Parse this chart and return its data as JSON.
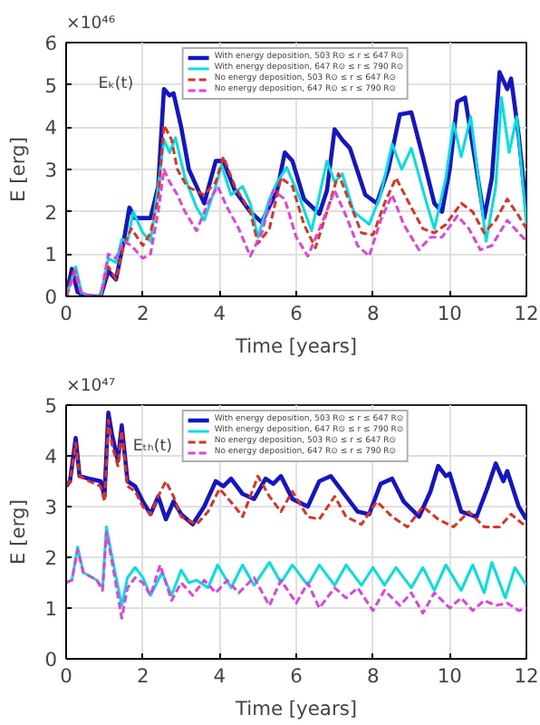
{
  "chart_data": [
    {
      "type": "line",
      "xlabel": "Time [years]",
      "ylabel": "E [erg]",
      "annotations": [
        "×10⁴⁶",
        "Eₖ(t)"
      ],
      "xlim": [
        0,
        12
      ],
      "xticks": [
        0,
        2,
        4,
        6,
        8,
        10,
        12
      ],
      "ylim": [
        0,
        6
      ],
      "yticks": [
        0,
        1,
        2,
        3,
        4,
        5,
        6
      ],
      "grid": true,
      "legend": "top",
      "series": [
        {
          "name": "With energy deposition, 503 R⊙ ≤ r ≤ 647 R⊙",
          "color": "#1414c8",
          "line_style": "solid",
          "x": [
            0,
            0.15,
            0.3,
            0.5,
            0.9,
            1.1,
            1.3,
            1.5,
            1.65,
            1.8,
            2.2,
            2.4,
            2.55,
            2.7,
            2.8,
            3.0,
            3.2,
            3.4,
            3.6,
            3.9,
            4.1,
            4.4,
            4.8,
            5.1,
            5.5,
            5.7,
            5.9,
            6.2,
            6.6,
            6.8,
            7.0,
            7.2,
            7.4,
            7.8,
            8.1,
            8.4,
            8.7,
            9.0,
            9.3,
            9.6,
            9.8,
            10.0,
            10.2,
            10.4,
            10.7,
            10.9,
            11.1,
            11.3,
            11.5,
            11.6,
            11.8,
            12
          ],
          "values": [
            0,
            0.65,
            0.1,
            0,
            0,
            0.6,
            0.4,
            1.3,
            2.1,
            1.85,
            1.85,
            2.6,
            4.9,
            4.75,
            4.8,
            4.0,
            3.0,
            2.6,
            2.2,
            3.2,
            3.2,
            2.5,
            2.0,
            1.75,
            2.5,
            3.4,
            3.2,
            2.3,
            1.95,
            2.5,
            3.95,
            3.7,
            3.5,
            2.4,
            2.2,
            3.0,
            4.3,
            4.35,
            3.3,
            2.2,
            2.0,
            3.0,
            4.6,
            4.7,
            3.0,
            1.85,
            2.8,
            5.3,
            4.9,
            5.15,
            3.8,
            2.0
          ]
        },
        {
          "name": "With energy deposition, 647 R⊙ ≤ r ≤ 790 R⊙",
          "color": "#00e0e0",
          "line_style": "solid",
          "x": [
            0,
            0.25,
            0.4,
            0.6,
            0.9,
            1.1,
            1.3,
            1.45,
            1.6,
            1.75,
            2.0,
            2.2,
            2.4,
            2.55,
            2.7,
            2.85,
            3.1,
            3.4,
            3.6,
            3.9,
            4.05,
            4.3,
            4.6,
            4.8,
            5.0,
            5.3,
            5.5,
            5.75,
            6.1,
            6.4,
            6.8,
            7.0,
            7.2,
            7.5,
            7.9,
            8.2,
            8.5,
            8.75,
            9.0,
            9.4,
            9.6,
            9.9,
            10.1,
            10.3,
            10.55,
            10.8,
            10.95,
            11.2,
            11.35,
            11.55,
            11.75,
            12
          ],
          "values": [
            0,
            0.7,
            0.1,
            0,
            0,
            0.9,
            0.8,
            1.35,
            1.3,
            2.0,
            1.5,
            1.3,
            2.6,
            3.7,
            3.4,
            3.75,
            2.8,
            2.1,
            1.8,
            2.6,
            3.1,
            2.4,
            2.6,
            2.2,
            1.4,
            2.3,
            2.7,
            3.05,
            2.3,
            1.55,
            3.2,
            2.7,
            2.9,
            2.0,
            1.7,
            2.4,
            3.6,
            3.0,
            3.5,
            2.2,
            1.6,
            2.8,
            4.1,
            3.3,
            4.25,
            2.4,
            1.3,
            2.6,
            4.7,
            3.4,
            4.25,
            1.7
          ]
        },
        {
          "name": "No energy deposition, 503 R⊙ ≤ r ≤ 647 R⊙",
          "color": "#e03020",
          "line_style": "dashed",
          "x": [
            0,
            0.2,
            0.4,
            0.9,
            1.1,
            1.3,
            1.5,
            1.7,
            2.0,
            2.2,
            2.4,
            2.55,
            2.75,
            2.9,
            3.15,
            3.6,
            3.9,
            4.1,
            4.4,
            4.8,
            5.0,
            5.3,
            5.6,
            5.9,
            6.2,
            6.5,
            6.8,
            7.1,
            7.4,
            7.7,
            8.0,
            8.3,
            8.6,
            9.0,
            9.3,
            9.6,
            9.9,
            10.3,
            10.6,
            10.9,
            11.2,
            11.5,
            11.8,
            12
          ],
          "values": [
            0,
            0.6,
            0.05,
            0,
            0.7,
            0.4,
            1.2,
            1.6,
            1.2,
            1.5,
            2.3,
            4.05,
            3.7,
            3.0,
            2.6,
            2.4,
            2.7,
            3.3,
            2.6,
            2.0,
            1.25,
            1.6,
            2.8,
            2.6,
            1.7,
            1.15,
            2.0,
            2.9,
            2.2,
            1.5,
            1.45,
            2.2,
            2.8,
            2.1,
            1.6,
            1.5,
            1.7,
            2.2,
            2.0,
            1.5,
            1.8,
            2.3,
            1.9,
            1.6
          ]
        },
        {
          "name": "No energy deposition, 647 R⊙ ≤ r ≤ 790 R⊙",
          "color": "#e040e0",
          "line_style": "dashed",
          "x": [
            0,
            0.25,
            0.4,
            0.9,
            1.1,
            1.3,
            1.5,
            1.7,
            2.0,
            2.2,
            2.4,
            2.55,
            2.7,
            2.9,
            3.1,
            3.4,
            3.7,
            3.95,
            4.2,
            4.5,
            4.8,
            5.1,
            5.4,
            5.7,
            6.0,
            6.3,
            6.7,
            7.0,
            7.3,
            7.6,
            7.9,
            8.2,
            8.5,
            8.8,
            9.2,
            9.5,
            9.8,
            10.2,
            10.5,
            10.8,
            11.1,
            11.5,
            11.8,
            12
          ],
          "values": [
            0,
            0.6,
            0.05,
            0,
            1.0,
            0.9,
            1.3,
            1.2,
            0.9,
            1.0,
            2.0,
            3.0,
            2.7,
            2.4,
            2.0,
            1.55,
            2.2,
            2.6,
            2.1,
            1.6,
            0.95,
            1.5,
            2.5,
            2.3,
            1.4,
            0.95,
            1.8,
            2.5,
            1.9,
            1.2,
            0.95,
            1.8,
            2.4,
            1.7,
            1.1,
            1.4,
            1.4,
            1.9,
            1.6,
            1.1,
            1.2,
            1.8,
            1.5,
            1.3
          ]
        }
      ]
    },
    {
      "type": "line",
      "xlabel": "Time [years]",
      "ylabel": "E [erg]",
      "annotations": [
        "×10⁴⁷",
        "Eₜₕ(t)"
      ],
      "xlim": [
        0,
        12
      ],
      "xticks": [
        0,
        2,
        4,
        6,
        8,
        10,
        12
      ],
      "ylim": [
        0,
        5
      ],
      "yticks": [
        0,
        1,
        2,
        3,
        4,
        5
      ],
      "grid": true,
      "legend": "top",
      "series": [
        {
          "name": "With energy deposition, 503 R⊙ ≤ r ≤ 647 R⊙",
          "color": "#1414c8",
          "line_style": "solid",
          "x": [
            0,
            0.1,
            0.25,
            0.35,
            0.6,
            0.9,
            1.0,
            1.1,
            1.2,
            1.35,
            1.45,
            1.6,
            1.8,
            2.0,
            2.2,
            2.4,
            2.6,
            2.8,
            3.0,
            3.3,
            3.6,
            3.9,
            4.1,
            4.3,
            4.6,
            4.9,
            5.2,
            5.4,
            5.6,
            5.9,
            6.3,
            6.6,
            6.9,
            7.2,
            7.6,
            7.9,
            8.2,
            8.5,
            8.8,
            9.2,
            9.5,
            9.7,
            9.9,
            10.0,
            10.3,
            10.7,
            11.0,
            11.2,
            11.4,
            11.5,
            11.8,
            12
          ],
          "values": [
            3.4,
            3.5,
            4.35,
            3.6,
            3.55,
            3.5,
            3.2,
            4.85,
            4.4,
            3.9,
            4.6,
            3.5,
            3.4,
            3.1,
            2.85,
            3.2,
            2.75,
            3.1,
            2.85,
            2.65,
            3.0,
            3.5,
            3.4,
            3.55,
            3.25,
            3.15,
            3.55,
            3.45,
            3.6,
            3.15,
            3.0,
            3.5,
            3.6,
            3.3,
            2.9,
            2.85,
            3.45,
            3.55,
            3.1,
            2.8,
            3.3,
            3.8,
            3.6,
            3.65,
            2.9,
            2.8,
            3.4,
            3.85,
            3.5,
            3.7,
            3.0,
            2.75
          ]
        },
        {
          "name": "With energy deposition, 647 R⊙ ≤ r ≤ 790 R⊙",
          "color": "#00e0e0",
          "line_style": "solid",
          "x": [
            0,
            0.15,
            0.3,
            0.45,
            0.8,
            0.95,
            1.05,
            1.2,
            1.45,
            1.6,
            1.8,
            2.0,
            2.2,
            2.5,
            2.75,
            3.0,
            3.2,
            3.4,
            3.7,
            3.95,
            4.3,
            4.6,
            4.9,
            5.3,
            5.6,
            5.9,
            6.3,
            6.6,
            7.0,
            7.3,
            7.7,
            8.0,
            8.3,
            8.6,
            9.0,
            9.3,
            9.6,
            9.9,
            10.3,
            10.6,
            10.9,
            11.1,
            11.45,
            11.7,
            12
          ],
          "values": [
            1.5,
            1.55,
            2.2,
            1.7,
            1.55,
            1.4,
            2.6,
            2.0,
            1.05,
            1.6,
            1.8,
            1.6,
            1.25,
            1.7,
            1.25,
            1.75,
            1.5,
            1.55,
            1.4,
            1.85,
            1.4,
            1.85,
            1.45,
            1.9,
            1.5,
            1.85,
            1.45,
            1.85,
            1.45,
            1.85,
            1.45,
            1.8,
            1.45,
            1.8,
            1.4,
            1.8,
            1.35,
            1.85,
            1.35,
            1.85,
            1.3,
            1.9,
            1.2,
            1.8,
            1.45
          ]
        },
        {
          "name": "No energy deposition, 503 R⊙ ≤ r ≤ 647 R⊙",
          "color": "#e03020",
          "line_style": "dashed",
          "x": [
            0,
            0.1,
            0.25,
            0.35,
            0.6,
            0.9,
            1.0,
            1.1,
            1.2,
            1.35,
            1.45,
            1.6,
            1.8,
            2.0,
            2.2,
            2.4,
            2.6,
            2.8,
            3.0,
            3.4,
            3.7,
            4.0,
            4.4,
            4.6,
            5.0,
            5.3,
            5.6,
            5.9,
            6.3,
            6.6,
            7.0,
            7.3,
            7.7,
            8.1,
            8.5,
            8.9,
            9.3,
            9.7,
            10.1,
            10.5,
            10.9,
            11.3,
            11.6,
            12
          ],
          "values": [
            3.4,
            3.5,
            4.25,
            3.6,
            3.5,
            3.4,
            3.1,
            4.7,
            4.2,
            3.8,
            4.5,
            3.4,
            3.3,
            3.0,
            2.85,
            3.2,
            3.5,
            3.2,
            2.8,
            2.65,
            2.9,
            3.35,
            3.0,
            2.8,
            3.6,
            3.2,
            2.9,
            3.3,
            2.8,
            2.75,
            3.2,
            2.8,
            2.65,
            3.1,
            2.8,
            2.6,
            3.0,
            2.75,
            2.6,
            2.9,
            2.6,
            2.6,
            2.85,
            2.6
          ]
        },
        {
          "name": "No energy deposition, 647 R⊙ ≤ r ≤ 790 R⊙",
          "color": "#e040e0",
          "line_style": "dashed",
          "x": [
            0,
            0.15,
            0.3,
            0.45,
            0.8,
            0.95,
            1.05,
            1.2,
            1.45,
            1.6,
            1.8,
            2.0,
            2.2,
            2.45,
            2.75,
            3.0,
            3.3,
            3.6,
            3.9,
            4.2,
            4.5,
            4.9,
            5.3,
            5.6,
            6.0,
            6.3,
            6.6,
            7.0,
            7.3,
            7.6,
            8.0,
            8.3,
            8.7,
            9.0,
            9.3,
            9.6,
            10.0,
            10.3,
            10.6,
            10.9,
            11.2,
            11.5,
            11.8,
            12
          ],
          "values": [
            1.5,
            1.55,
            2.15,
            1.7,
            1.55,
            1.35,
            2.5,
            1.9,
            0.8,
            1.4,
            1.6,
            1.5,
            1.25,
            1.85,
            1.15,
            1.5,
            1.25,
            1.55,
            1.3,
            1.55,
            1.3,
            1.6,
            1.05,
            1.55,
            1.1,
            1.5,
            1.0,
            1.4,
            1.2,
            1.4,
            0.95,
            1.35,
            1.05,
            1.3,
            0.9,
            1.3,
            1.0,
            1.2,
            0.95,
            1.15,
            1.05,
            1.1,
            0.95,
            1.0
          ]
        }
      ]
    }
  ]
}
